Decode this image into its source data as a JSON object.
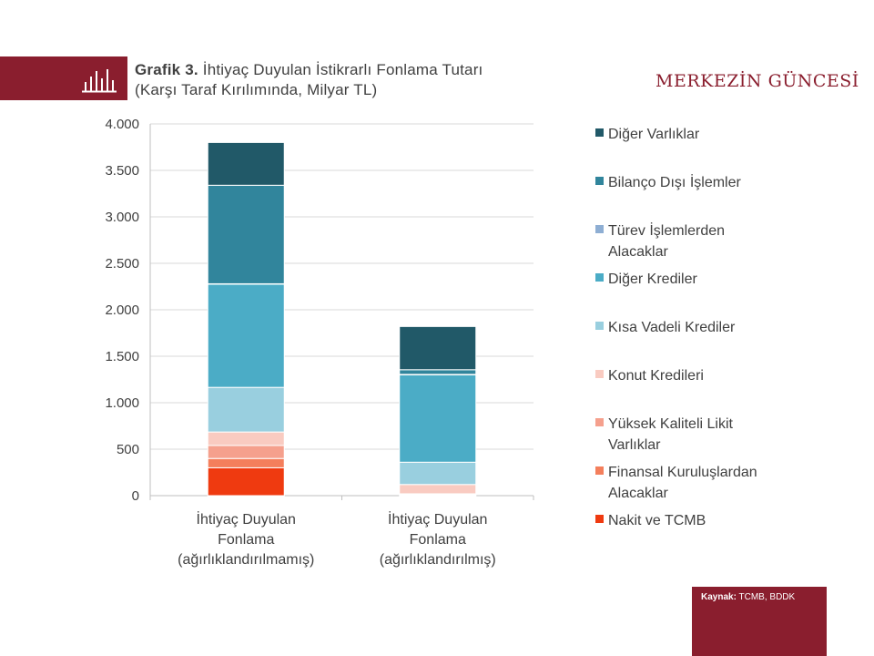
{
  "header": {
    "title_bold": "Grafik 3.",
    "title_line1": "İhtiyaç Duyulan İstikrarlı Fonlama Tutarı",
    "title_line2": "(Karşı Taraf Kırılımında, Milyar TL)",
    "brand": "MERKEZİN GÜNCESİ",
    "icon": "bar-chart-icon"
  },
  "source": {
    "label": "Kaynak:",
    "value": "TCMB, BDDK"
  },
  "colors": {
    "brand": "#8a1e2e"
  },
  "chart_data": {
    "type": "bar",
    "stacked": true,
    "ylim": [
      0,
      4000
    ],
    "yticks": [
      0,
      500,
      1000,
      1500,
      2000,
      2500,
      3000,
      3500,
      4000
    ],
    "ytick_labels": [
      "0",
      "500",
      "1.000",
      "1.500",
      "2.000",
      "2.500",
      "3.000",
      "3.500",
      "4.000"
    ],
    "categories": [
      [
        "İhtiyaç Duyulan",
        "Fonlama",
        "(ağırlıklandırılmamış)"
      ],
      [
        "İhtiyaç Duyulan",
        "Fonlama",
        "(ağırlıklandırılmış)"
      ]
    ],
    "series": [
      {
        "name": "Nakit ve TCMB",
        "color": "#ef3a10",
        "values": [
          300,
          0
        ]
      },
      {
        "name": "Finansal Kuruluşlardan Alacaklar",
        "color": "#f47f5c",
        "values": [
          100,
          10
        ]
      },
      {
        "name": "Yüksek Kaliteli Likit Varlıklar",
        "color": "#f5a08d",
        "values": [
          140,
          10
        ]
      },
      {
        "name": "Konut Kredileri",
        "color": "#f9cbc1",
        "values": [
          145,
          100
        ]
      },
      {
        "name": "Kısa Vadeli Krediler",
        "color": "#99cfdf",
        "values": [
          480,
          240
        ]
      },
      {
        "name": "Diğer Krediler",
        "color": "#4bacc6",
        "values": [
          1110,
          940
        ]
      },
      {
        "name": "Türev İşlemlerden Alacaklar",
        "color": "#8eaed3",
        "values": [
          5,
          5
        ]
      },
      {
        "name": "Bilanço Dışı İşlemler",
        "color": "#31859c",
        "values": [
          1060,
          50
        ]
      },
      {
        "name": "Diğer Varlıklar",
        "color": "#215968",
        "values": [
          460,
          465
        ]
      }
    ],
    "legend_order": [
      [
        "Diğer Varlıklar"
      ],
      [
        "Bilanço Dışı İşlemler"
      ],
      [
        "Türev İşlemlerden",
        "Alacaklar"
      ],
      [
        "Diğer Krediler"
      ],
      [
        "Kısa Vadeli Krediler"
      ],
      [
        "Konut Kredileri"
      ],
      [
        "Yüksek Kaliteli Likit",
        "Varlıklar"
      ],
      [
        "Finansal Kuruluşlardan",
        "Alacaklar"
      ],
      [
        "Nakit ve TCMB"
      ]
    ],
    "legend_position": "right",
    "grid": true
  }
}
